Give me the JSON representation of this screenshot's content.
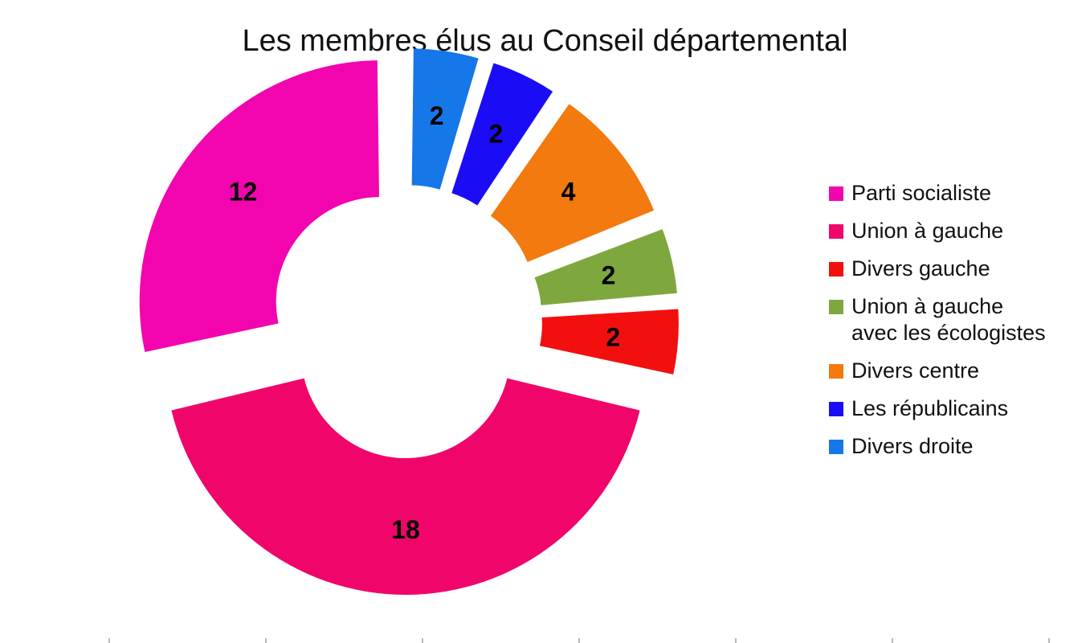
{
  "chart_data": {
    "type": "pie",
    "variant": "exploded-donut",
    "title": "Les membres élus au Conseil départemental",
    "legend_position": "right",
    "series": [
      {
        "name": "Divers droite",
        "value": 2,
        "label": "2",
        "color": "#1577E8"
      },
      {
        "name": "Les républicains",
        "value": 2,
        "label": "2",
        "color": "#1A0DF5"
      },
      {
        "name": "Divers centre",
        "value": 4,
        "label": "4",
        "color": "#F27A0E"
      },
      {
        "name": "Union à gauche\navec les écologistes",
        "value": 2,
        "label": "2",
        "color": "#7EA83E"
      },
      {
        "name": "Divers gauche",
        "value": 2,
        "label": "2",
        "color": "#F2100F"
      },
      {
        "name": "Union à gauche",
        "value": 18,
        "label": "18",
        "color": "#F0066A"
      },
      {
        "name": "Parti socialiste",
        "value": 12,
        "label": "12",
        "color": "#F205AF"
      }
    ],
    "legend_order": [
      "Parti socialiste",
      "Union à gauche",
      "Divers gauche",
      "Union à gauche\navec les écologistes",
      "Divers centre",
      "Les républicains",
      "Divers droite"
    ]
  }
}
